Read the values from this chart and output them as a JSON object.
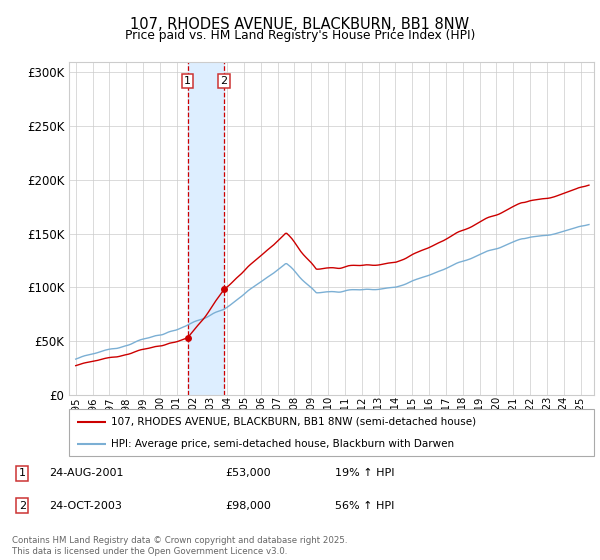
{
  "title": "107, RHODES AVENUE, BLACKBURN, BB1 8NW",
  "subtitle": "Price paid vs. HM Land Registry's House Price Index (HPI)",
  "legend_line1": "107, RHODES AVENUE, BLACKBURN, BB1 8NW (semi-detached house)",
  "legend_line2": "HPI: Average price, semi-detached house, Blackburn with Darwen",
  "footnote": "Contains HM Land Registry data © Crown copyright and database right 2025.\nThis data is licensed under the Open Government Licence v3.0.",
  "purchase1_date": "24-AUG-2001",
  "purchase1_price": "£53,000",
  "purchase1_hpi": "19% ↑ HPI",
  "purchase2_date": "24-OCT-2003",
  "purchase2_price": "£98,000",
  "purchase2_hpi": "56% ↑ HPI",
  "property_color": "#cc0000",
  "hpi_color": "#7bafd4",
  "shade_color": "#ddeeff",
  "dashed_color": "#cc0000",
  "ylim": [
    0,
    310000
  ],
  "yticks": [
    0,
    50000,
    100000,
    150000,
    200000,
    250000,
    300000
  ],
  "purchase1_x": 2001.645,
  "purchase2_x": 2003.81,
  "purchase1_y": 53000,
  "purchase2_y": 98000,
  "bg_color": "#ffffff",
  "grid_color": "#cccccc",
  "xmin": 1994.6,
  "xmax": 2025.8
}
